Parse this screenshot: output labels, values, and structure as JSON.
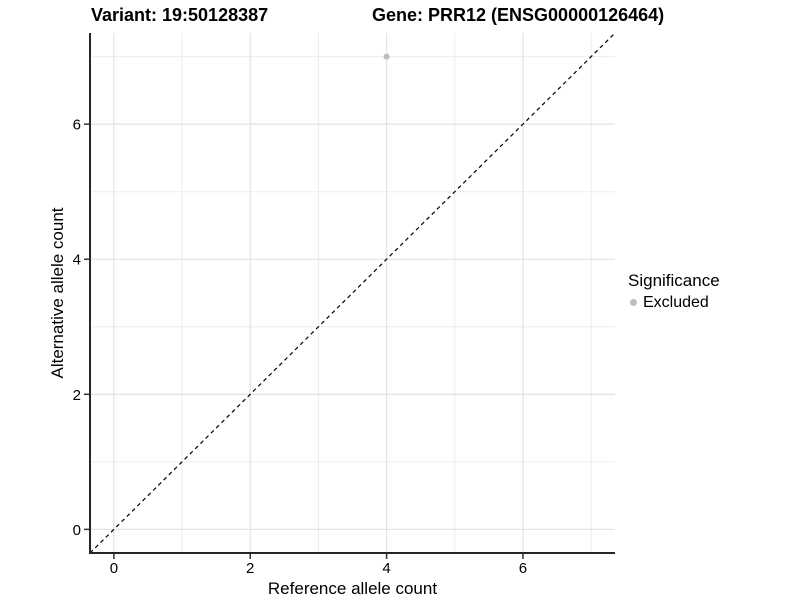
{
  "titles": {
    "variant": "Variant: 19:50128387",
    "gene": "Gene: PRR12 (ENSG00000126464)"
  },
  "axes": {
    "x_label": "Reference allele count",
    "y_label": "Alternative allele count"
  },
  "legend": {
    "title": "Significance",
    "items": [
      {
        "label": "Excluded",
        "color": "#bebebe"
      }
    ]
  },
  "colors": {
    "background": "#ffffff",
    "point": "#bebebe",
    "grid_major": "#e4e4e4",
    "grid_minor": "#ededed",
    "axis_line": "#262626",
    "tick_mark": "#333333",
    "tick_label": "#000000",
    "reference_line": "#000000"
  },
  "chart_data": {
    "type": "scatter",
    "title": "Variant: 19:50128387    Gene: PRR12 (ENSG00000126464)",
    "xlabel": "Reference allele count",
    "ylabel": "Alternative allele count",
    "xlim": [
      -0.35,
      7.35
    ],
    "ylim": [
      -0.35,
      7.35
    ],
    "x_ticks": [
      0,
      2,
      4,
      6
    ],
    "y_ticks": [
      0,
      2,
      4,
      6
    ],
    "x_minor_ticks": [
      1,
      3,
      5,
      7
    ],
    "y_minor_ticks": [
      1,
      3,
      5,
      7
    ],
    "grid": true,
    "legend_position": "right",
    "series": [
      {
        "name": "Excluded",
        "color": "#bebebe",
        "points": [
          {
            "x": 4,
            "y": 7
          }
        ]
      }
    ],
    "reference_line": {
      "slope": 1,
      "intercept": 0,
      "style": "dashed"
    }
  }
}
